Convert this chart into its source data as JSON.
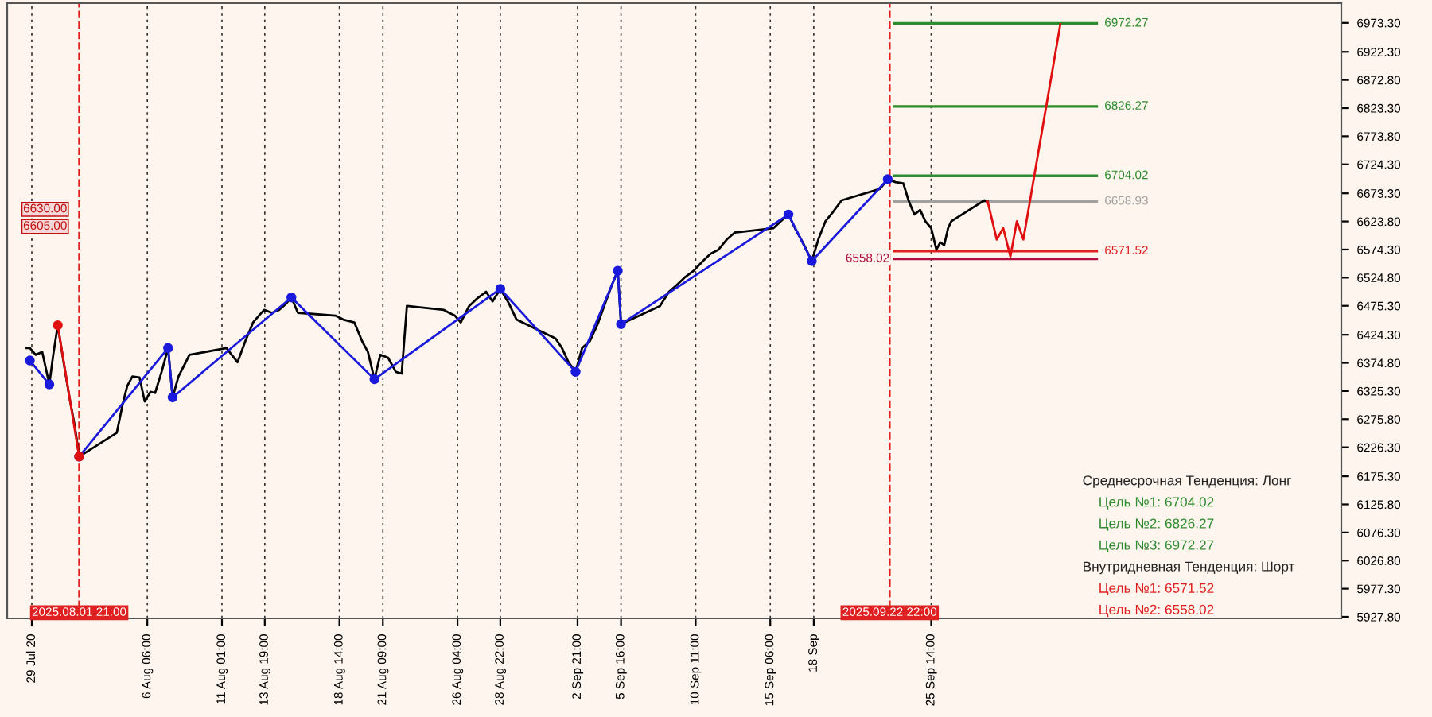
{
  "chart_data": {
    "type": "line",
    "xlim": [
      "2025-07-28T06:00",
      "2025-10-21T22:00"
    ],
    "ylim": [
      5925,
      7008
    ],
    "xticks": [
      {
        "value": "2025-07-29T20:00",
        "label": "29 Jul 20"
      },
      {
        "value": "2025-08-06T06:00",
        "label": "6 Aug 06:00"
      },
      {
        "value": "2025-08-11T01:00",
        "label": "11 Aug 01:00"
      },
      {
        "value": "2025-08-13T19:00",
        "label": "13 Aug 19:00"
      },
      {
        "value": "2025-08-18T14:00",
        "label": "18 Aug 14:00"
      },
      {
        "value": "2025-08-21T09:00",
        "label": "21 Aug 09:00"
      },
      {
        "value": "2025-08-26T04:00",
        "label": "26 Aug 04:00"
      },
      {
        "value": "2025-08-28T22:00",
        "label": "28 Aug 22:00"
      },
      {
        "value": "2025-09-02T21:00",
        "label": "2 Sep 21:00"
      },
      {
        "value": "2025-09-05T16:00",
        "label": "5 Sep 16:00"
      },
      {
        "value": "2025-09-10T11:00",
        "label": "10 Sep 11:00"
      },
      {
        "value": "2025-09-15T06:00",
        "label": "15 Sep 06:00"
      },
      {
        "value": "2025-09-18T01:00",
        "label": "18 Sep"
      },
      {
        "value": "2025-09-25T14:00",
        "label": "25 Sep 14:00"
      }
    ],
    "yticks": [
      {
        "value": 6973.3,
        "label": "6973.30"
      },
      {
        "value": 6922.3,
        "label": "6922.30"
      },
      {
        "value": 6872.8,
        "label": "6872.80"
      },
      {
        "value": 6823.3,
        "label": "6823.30"
      },
      {
        "value": 6773.8,
        "label": "6773.80"
      },
      {
        "value": 6724.3,
        "label": "6724.30"
      },
      {
        "value": 6673.3,
        "label": "6673.30"
      },
      {
        "value": 6623.8,
        "label": "6623.80"
      },
      {
        "value": 6574.3,
        "label": "6574.30"
      },
      {
        "value": 6524.8,
        "label": "6524.80"
      },
      {
        "value": 6475.3,
        "label": "6475.30"
      },
      {
        "value": 6424.3,
        "label": "6424.30"
      },
      {
        "value": 6374.8,
        "label": "6374.80"
      },
      {
        "value": 6325.3,
        "label": "6325.30"
      },
      {
        "value": 6275.8,
        "label": "6275.80"
      },
      {
        "value": 6226.3,
        "label": "6226.30"
      },
      {
        "value": 6175.3,
        "label": "6175.30"
      },
      {
        "value": 6125.8,
        "label": "6125.80"
      },
      {
        "value": 6076.3,
        "label": "6076.30"
      },
      {
        "value": 6026.8,
        "label": "6026.80"
      },
      {
        "value": 5977.3,
        "label": "5977.30"
      },
      {
        "value": 5927.8,
        "label": "5927.80"
      }
    ],
    "grid": "x",
    "legend": false,
    "series": [
      {
        "color": "#000000",
        "marker": "none",
        "x": [
          "2025-07-29T12:00",
          "2025-07-29T17:00",
          "2025-07-30T02:00",
          "2025-07-30T12:00",
          "2025-07-30T23:00",
          "2025-07-31T05:00",
          "2025-07-31T12:00",
          "2025-07-31T21:00",
          "2025-08-01T06:00",
          "2025-08-01T14:00",
          "2025-08-01T21:00",
          "2025-08-04T07:00",
          "2025-08-04T16:00",
          "2025-08-04T23:00",
          "2025-08-05T07:00",
          "2025-08-05T18:00",
          "2025-08-06T02:00",
          "2025-08-06T11:00",
          "2025-08-06T18:00",
          "2025-08-07T04:00",
          "2025-08-07T14:00",
          "2025-08-07T21:00",
          "2025-08-08T06:00",
          "2025-08-08T15:00",
          "2025-08-08T23:00",
          "2025-08-11T08:00",
          "2025-08-11T16:00",
          "2025-08-12T01:00",
          "2025-08-12T13:00",
          "2025-08-13T01:00",
          "2025-08-13T10:00",
          "2025-08-13T18:00",
          "2025-08-14T06:00",
          "2025-08-14T17:00",
          "2025-08-15T03:00",
          "2025-08-15T12:00",
          "2025-08-15T22:00",
          "2025-08-18T08:00",
          "2025-08-18T20:00",
          "2025-08-19T13:00",
          "2025-08-20T01:00",
          "2025-08-20T10:00",
          "2025-08-20T20:00",
          "2025-08-21T05:00",
          "2025-08-21T17:00",
          "2025-08-22T05:00",
          "2025-08-22T14:00",
          "2025-08-22T22:00",
          "2025-08-25T07:00",
          "2025-08-25T15:00",
          "2025-08-26T00:00",
          "2025-08-26T09:00",
          "2025-08-26T22:00",
          "2025-08-27T10:00",
          "2025-08-28T00:00",
          "2025-08-28T10:00",
          "2025-08-28T22:00",
          "2025-08-29T11:00",
          "2025-08-29T23:00",
          "2025-09-01T11:00",
          "2025-09-01T21:00",
          "2025-09-02T07:00",
          "2025-09-02T18:00",
          "2025-09-03T04:00",
          "2025-09-03T16:00",
          "2025-09-04T04:00",
          "2025-09-04T14:00",
          "2025-09-05T02:00",
          "2025-09-05T11:00",
          "2025-09-05T16:00",
          "2025-09-08T04:00",
          "2025-09-08T18:00",
          "2025-09-09T06:00",
          "2025-09-09T18:00",
          "2025-09-10T08:00",
          "2025-09-10T22:00",
          "2025-09-11T10:00",
          "2025-09-11T22:00",
          "2025-09-12T11:00",
          "2025-09-12T23:00",
          "2025-09-15T11:00",
          "2025-09-15T22:00",
          "2025-09-16T10:00",
          "2025-09-16T20:00",
          "2025-09-17T08:00",
          "2025-09-17T22:00",
          "2025-09-18T08:00",
          "2025-09-18T19:00",
          "2025-09-19T07:00",
          "2025-09-19T20:00",
          "2025-09-22T07:00",
          "2025-09-22T19:00",
          "2025-09-23T07:00",
          "2025-09-23T19:00",
          "2025-09-24T03:00",
          "2025-09-24T12:00",
          "2025-09-24T21:00",
          "2025-09-25T05:00",
          "2025-09-25T14:00",
          "2025-09-25T22:00",
          "2025-09-26T04:00",
          "2025-09-26T10:00",
          "2025-09-26T16:00",
          "2025-09-26T21:00",
          "2025-09-29T00:00",
          "2025-09-29T05:00"
        ],
        "values": [
          6401,
          6401,
          6389,
          6394,
          6337,
          6389,
          6441,
          6376,
          6314,
          6265,
          6210,
          6252,
          6302,
          6334,
          6351,
          6349,
          6307,
          6324,
          6322,
          6359,
          6401,
          6314,
          6351,
          6371,
          6389,
          6401,
          6389,
          6376,
          6413,
          6446,
          6458,
          6468,
          6463,
          6468,
          6478,
          6490,
          6463,
          6458,
          6451,
          6446,
          6413,
          6394,
          6346,
          6389,
          6384,
          6359,
          6356,
          6475,
          6468,
          6463,
          6458,
          6446,
          6475,
          6488,
          6500,
          6483,
          6505,
          6480,
          6451,
          6418,
          6401,
          6376,
          6359,
          6401,
          6413,
          6443,
          6475,
          6512,
          6537,
          6443,
          6475,
          6500,
          6512,
          6525,
          6537,
          6554,
          6567,
          6574,
          6592,
          6604,
          6612,
          6624,
          6636,
          6612,
          6587,
          6554,
          6592,
          6624,
          6641,
          6661,
          6681,
          6698,
          6693,
          6691,
          6661,
          6636,
          6644,
          6624,
          6612,
          6574,
          6587,
          6582,
          6612,
          6624,
          6661,
          6659
        ]
      },
      {
        "color": "#1a1adc",
        "marker": "circle",
        "x": [
          "2025-07-29T17:00",
          "2025-07-30T23:00",
          "2025-07-31T12:00",
          "2025-08-01T21:00",
          "2025-08-07T14:00",
          "2025-08-07T21:00",
          "2025-08-15T12:00",
          "2025-08-20T20:00",
          "2025-08-28T22:00",
          "2025-09-02T18:00",
          "2025-09-05T11:00",
          "2025-09-05T16:00",
          "2025-09-16T10:00",
          "2025-09-17T22:00",
          "2025-09-22T19:00"
        ],
        "values": [
          6379,
          6337,
          null,
          6210,
          6401,
          6314,
          6490,
          6346,
          6505,
          6359,
          6537,
          6443,
          6636,
          6554,
          6698
        ]
      },
      {
        "color": "#e01010",
        "marker": "circle",
        "x": [
          "2025-07-31T12:00",
          "2025-08-01T21:00"
        ],
        "values": [
          6441,
          6210
        ]
      },
      {
        "color": "#e01010",
        "marker": "none",
        "x": [
          "2025-09-29T05:00",
          "2025-09-29T19:00",
          "2025-09-30T05:00",
          "2025-09-30T16:00",
          "2025-10-01T02:00",
          "2025-10-01T12:00",
          "2025-10-03T21:00"
        ],
        "values": [
          6659,
          6592,
          6612,
          6562,
          6624,
          6592,
          6971
        ]
      }
    ],
    "ref_lines": [
      {
        "axis": "y",
        "value": 6972.27,
        "label": "6972.27",
        "color": "#2e8b2e"
      },
      {
        "axis": "y",
        "value": 6826.27,
        "label": "6826.27",
        "color": "#2e8b2e"
      },
      {
        "axis": "y",
        "value": 6704.02,
        "label": "6704.02",
        "color": "#2e8b2e"
      },
      {
        "axis": "y",
        "value": 6571.52,
        "label": "6571.52",
        "color": "#e02020"
      },
      {
        "axis": "y",
        "value": 6558.02,
        "label": "6558.02",
        "color": "#b01040"
      },
      {
        "axis": "y",
        "value": 6658.93,
        "label": "6658.93",
        "color": "#a0a0a0"
      },
      {
        "axis": "x",
        "value": "2025-08-01T21:00",
        "label": "2025.08.01 21:00",
        "color": "#e02020",
        "line_style": "dashed"
      },
      {
        "axis": "x",
        "value": "2025-09-22T22:00",
        "label": "2025.09.22 22:00",
        "color": "#e02020",
        "line_style": "dashed"
      }
    ],
    "annotations": [
      "Среднесрочная Тенденция: Лонг",
      "Цель №1: 6704.02",
      "Цель №2: 6826.27",
      "Цель №3: 6972.27",
      "Внутридневная Тенденция: Шорт",
      "Цель №1: 6571.52",
      "Цель №2: 6558.02",
      "6630.00",
      "6605.00"
    ]
  }
}
